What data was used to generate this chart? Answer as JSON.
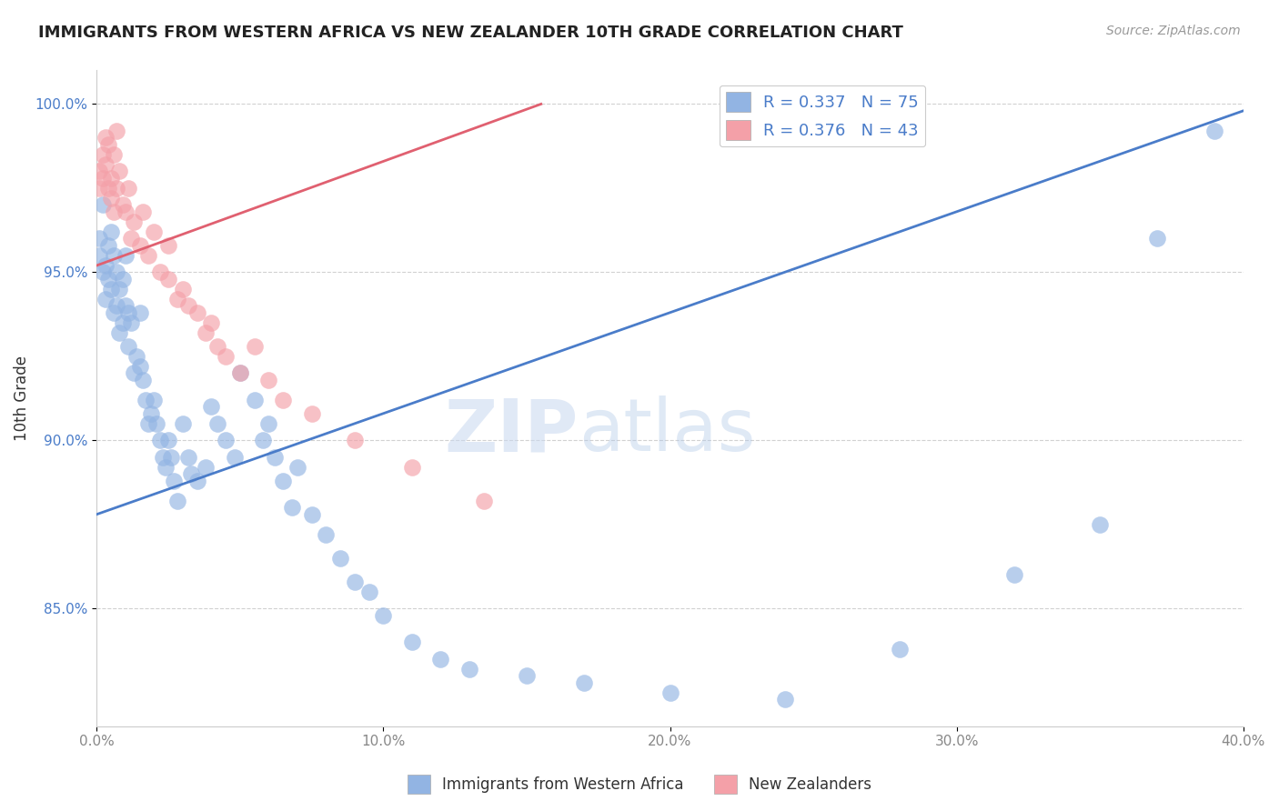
{
  "title": "IMMIGRANTS FROM WESTERN AFRICA VS NEW ZEALANDER 10TH GRADE CORRELATION CHART",
  "source": "Source: ZipAtlas.com",
  "xlabel_blue": "Immigrants from Western Africa",
  "xlabel_pink": "New Zealanders",
  "ylabel": "10th Grade",
  "xlim": [
    0.0,
    0.4
  ],
  "ylim": [
    0.815,
    1.01
  ],
  "xtick_labels": [
    "0.0%",
    "10.0%",
    "20.0%",
    "30.0%",
    "40.0%"
  ],
  "xtick_vals": [
    0.0,
    0.1,
    0.2,
    0.3,
    0.4
  ],
  "ytick_labels": [
    "85.0%",
    "90.0%",
    "95.0%",
    "100.0%"
  ],
  "ytick_vals": [
    0.85,
    0.9,
    0.95,
    1.0
  ],
  "legend_blue_r": "R = 0.337",
  "legend_blue_n": "N = 75",
  "legend_pink_r": "R = 0.376",
  "legend_pink_n": "N = 43",
  "blue_color": "#92b4e3",
  "pink_color": "#f4a0a8",
  "blue_line_color": "#4a7cc9",
  "pink_line_color": "#e06070",
  "watermark_zip": "ZIP",
  "watermark_atlas": "atlas",
  "blue_scatter_x": [
    0.001,
    0.001,
    0.002,
    0.002,
    0.003,
    0.003,
    0.004,
    0.004,
    0.005,
    0.005,
    0.006,
    0.006,
    0.007,
    0.007,
    0.008,
    0.008,
    0.009,
    0.009,
    0.01,
    0.01,
    0.011,
    0.011,
    0.012,
    0.013,
    0.014,
    0.015,
    0.015,
    0.016,
    0.017,
    0.018,
    0.019,
    0.02,
    0.021,
    0.022,
    0.023,
    0.024,
    0.025,
    0.026,
    0.027,
    0.028,
    0.03,
    0.032,
    0.033,
    0.035,
    0.038,
    0.04,
    0.042,
    0.045,
    0.048,
    0.05,
    0.055,
    0.058,
    0.06,
    0.062,
    0.065,
    0.068,
    0.07,
    0.075,
    0.08,
    0.085,
    0.09,
    0.095,
    0.1,
    0.11,
    0.12,
    0.13,
    0.15,
    0.17,
    0.2,
    0.24,
    0.28,
    0.32,
    0.35,
    0.37,
    0.39
  ],
  "blue_scatter_y": [
    0.96,
    0.955,
    0.97,
    0.95,
    0.952,
    0.942,
    0.958,
    0.948,
    0.962,
    0.945,
    0.955,
    0.938,
    0.95,
    0.94,
    0.945,
    0.932,
    0.948,
    0.935,
    0.955,
    0.94,
    0.938,
    0.928,
    0.935,
    0.92,
    0.925,
    0.938,
    0.922,
    0.918,
    0.912,
    0.905,
    0.908,
    0.912,
    0.905,
    0.9,
    0.895,
    0.892,
    0.9,
    0.895,
    0.888,
    0.882,
    0.905,
    0.895,
    0.89,
    0.888,
    0.892,
    0.91,
    0.905,
    0.9,
    0.895,
    0.92,
    0.912,
    0.9,
    0.905,
    0.895,
    0.888,
    0.88,
    0.892,
    0.878,
    0.872,
    0.865,
    0.858,
    0.855,
    0.848,
    0.84,
    0.835,
    0.832,
    0.83,
    0.828,
    0.825,
    0.823,
    0.838,
    0.86,
    0.875,
    0.96,
    0.992
  ],
  "pink_scatter_x": [
    0.001,
    0.001,
    0.002,
    0.002,
    0.003,
    0.003,
    0.004,
    0.004,
    0.005,
    0.005,
    0.006,
    0.006,
    0.007,
    0.007,
    0.008,
    0.009,
    0.01,
    0.011,
    0.012,
    0.013,
    0.015,
    0.016,
    0.018,
    0.02,
    0.022,
    0.025,
    0.025,
    0.028,
    0.03,
    0.032,
    0.035,
    0.038,
    0.04,
    0.042,
    0.045,
    0.05,
    0.055,
    0.06,
    0.065,
    0.075,
    0.09,
    0.11,
    0.135
  ],
  "pink_scatter_y": [
    0.98,
    0.975,
    0.985,
    0.978,
    0.99,
    0.982,
    0.975,
    0.988,
    0.978,
    0.972,
    0.985,
    0.968,
    0.992,
    0.975,
    0.98,
    0.97,
    0.968,
    0.975,
    0.96,
    0.965,
    0.958,
    0.968,
    0.955,
    0.962,
    0.95,
    0.958,
    0.948,
    0.942,
    0.945,
    0.94,
    0.938,
    0.932,
    0.935,
    0.928,
    0.925,
    0.92,
    0.928,
    0.918,
    0.912,
    0.908,
    0.9,
    0.892,
    0.882
  ],
  "blue_trendline_x": [
    0.0,
    0.4
  ],
  "blue_trendline_y": [
    0.878,
    0.998
  ],
  "pink_trendline_x": [
    0.0,
    0.155
  ],
  "pink_trendline_y": [
    0.952,
    1.0
  ]
}
